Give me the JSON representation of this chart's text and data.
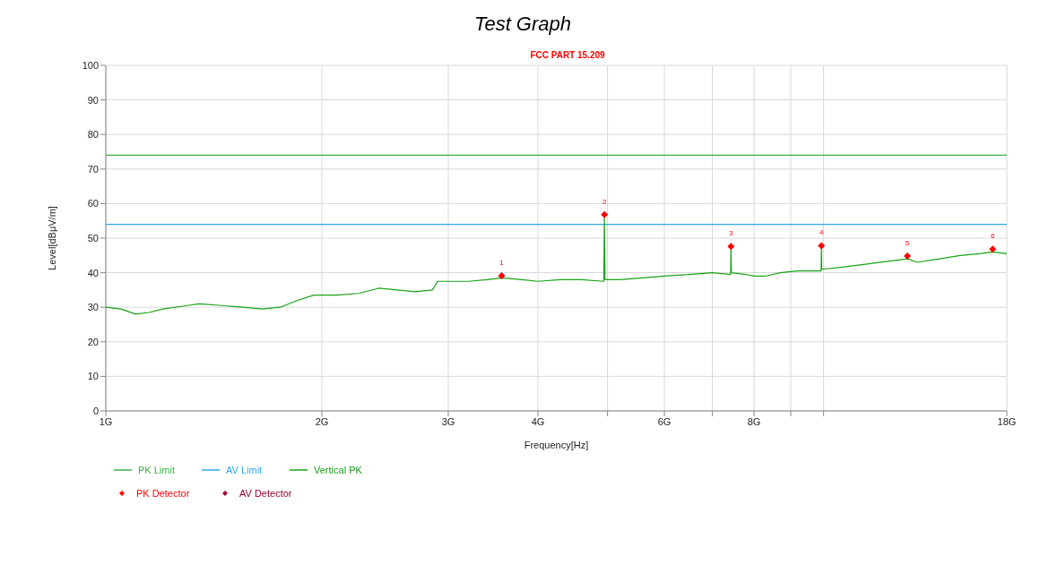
{
  "chart_data": {
    "type": "line",
    "title": "Test Graph",
    "subtitle": "FCC PART 15.209",
    "xlabel": "Frequency[Hz]",
    "ylabel": "Level[dBμV/m]",
    "log": "x",
    "xlim": [
      1,
      18
    ],
    "xticks": [
      {
        "value": 1,
        "label": "1G"
      },
      {
        "value": 2,
        "label": "2G"
      },
      {
        "value": 3,
        "label": "3G"
      },
      {
        "value": 4,
        "label": "4G"
      },
      {
        "value": 5,
        "label": null
      },
      {
        "value": 6,
        "label": "6G"
      },
      {
        "value": 7,
        "label": null
      },
      {
        "value": 8,
        "label": "8G"
      },
      {
        "value": 9,
        "label": null
      },
      {
        "value": 10,
        "label": null
      },
      {
        "value": 18,
        "label": "18G"
      }
    ],
    "ylim": [
      0,
      100
    ],
    "yticks": [
      0,
      10,
      20,
      30,
      40,
      50,
      60,
      70,
      80,
      90,
      100
    ],
    "grid": true,
    "legend": "bottom left",
    "marker": "none",
    "series": [
      {
        "name": "PK Limit",
        "color": "#3cb043",
        "x": [
          1,
          18
        ],
        "values": [
          74,
          74
        ]
      },
      {
        "name": "AV Limit",
        "color": "#2ea8e8",
        "x": [
          1,
          18
        ],
        "values": [
          54,
          54
        ]
      },
      {
        "name": "Vertical PK",
        "color": "#17a317",
        "x": [
          1.0,
          1.05,
          1.1,
          1.15,
          1.2,
          1.3,
          1.35,
          1.45,
          1.55,
          1.65,
          1.75,
          1.85,
          1.95,
          2.1,
          2.25,
          2.4,
          2.55,
          2.7,
          2.85,
          2.9,
          3.0,
          3.2,
          3.4,
          3.56,
          3.8,
          4.0,
          4.3,
          4.6,
          4.94,
          4.95,
          4.96,
          5.2,
          5.6,
          6.0,
          6.5,
          7.0,
          7.42,
          7.43,
          7.44,
          7.8,
          8.0,
          8.3,
          8.7,
          9.2,
          9.92,
          9.93,
          9.94,
          10.5,
          11.5,
          12.5,
          13.1,
          13.5,
          14.5,
          15.5,
          16.5,
          17.2,
          18.0
        ],
        "values": [
          30,
          29.5,
          28,
          28.5,
          29.5,
          30.5,
          31,
          30.5,
          30,
          29.5,
          30,
          32,
          33.5,
          33.5,
          34,
          35.5,
          35,
          34.5,
          35,
          37.5,
          37.5,
          37.5,
          38,
          38.5,
          38,
          37.5,
          38,
          38,
          37.5,
          56,
          38,
          38,
          38.5,
          39,
          39.5,
          40,
          39.5,
          47,
          40,
          39.5,
          39,
          39,
          40,
          40.5,
          40.5,
          47.5,
          41,
          41.5,
          42.5,
          43.5,
          44,
          43,
          44,
          45,
          45.5,
          46,
          45.5
        ]
      },
      {
        "name": "PK Detector",
        "type": "scatter",
        "marker": "diamond",
        "color": "#ff0000",
        "x": [
          3.56,
          4.95,
          7.43,
          9.93,
          13.08,
          17.2
        ],
        "values": [
          39.1,
          56.8,
          47.6,
          47.8,
          44.8,
          46.8
        ]
      },
      {
        "name": "AV Detector",
        "type": "scatter",
        "marker": "diamond",
        "color": "#990033"
      }
    ],
    "annotations": [
      {
        "text": "1",
        "x": 3.56,
        "y": 39.1
      },
      {
        "text": "2",
        "x": 4.95,
        "y": 56.8
      },
      {
        "text": "3",
        "x": 7.43,
        "y": 47.6
      },
      {
        "text": "4",
        "x": 9.93,
        "y": 47.8
      },
      {
        "text": "5",
        "x": 13.08,
        "y": 44.8
      },
      {
        "text": "6",
        "x": 17.2,
        "y": 46.8
      }
    ]
  }
}
